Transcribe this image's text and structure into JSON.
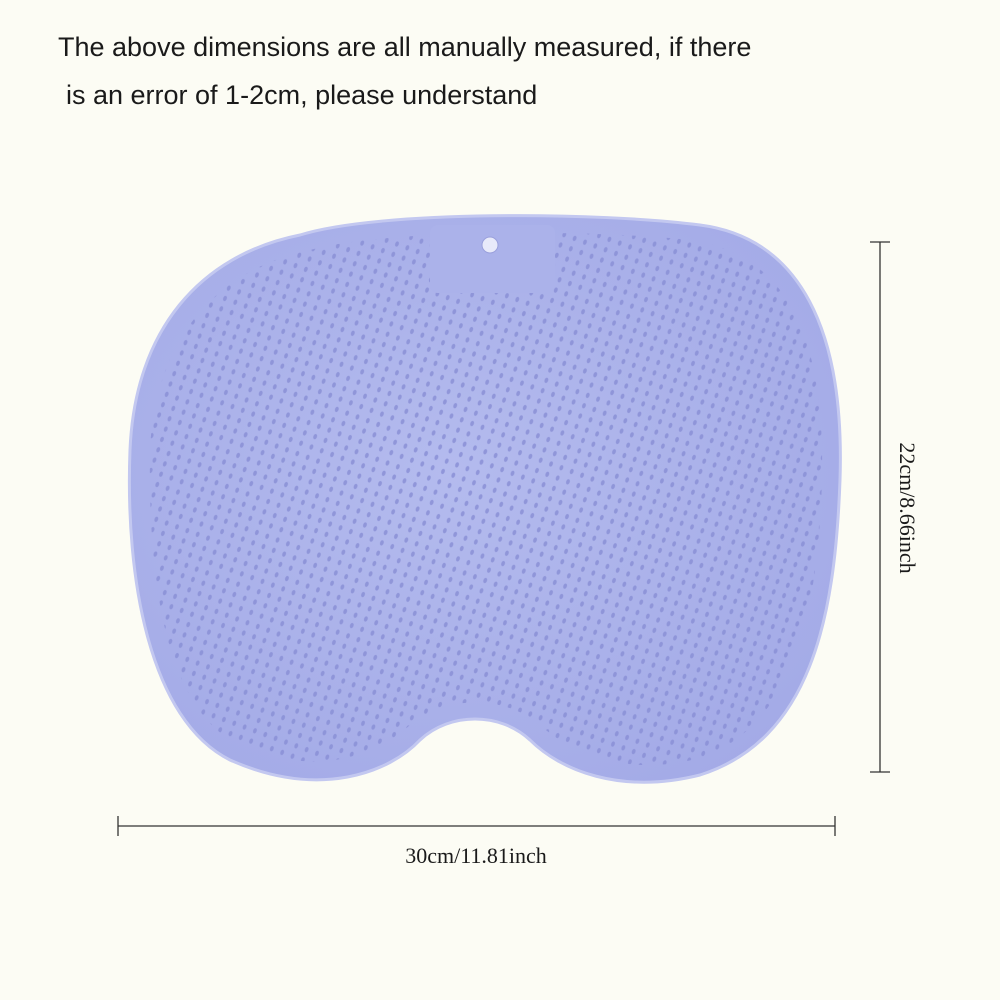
{
  "header": {
    "lines": [
      "The above dimensions are all manually measured, if there",
      "is an error of 1-2cm, please understand"
    ]
  },
  "dimensions": {
    "width": "30cm/11.81inch",
    "height": "22cm/8.66inch"
  }
}
